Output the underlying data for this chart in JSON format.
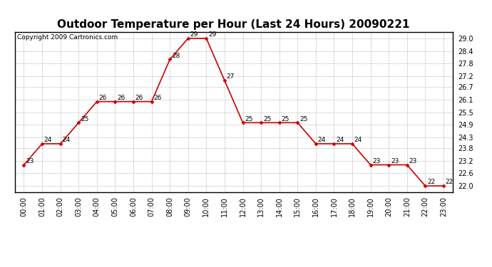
{
  "title": "Outdoor Temperature per Hour (Last 24 Hours) 20090221",
  "copyright": "Copyright 2009 Cartronics.com",
  "hours": [
    "00:00",
    "01:00",
    "02:00",
    "03:00",
    "04:00",
    "05:00",
    "06:00",
    "07:00",
    "08:00",
    "09:00",
    "10:00",
    "11:00",
    "12:00",
    "13:00",
    "14:00",
    "15:00",
    "16:00",
    "17:00",
    "18:00",
    "19:00",
    "20:00",
    "21:00",
    "22:00",
    "23:00"
  ],
  "values": [
    23,
    24,
    24,
    25,
    26,
    26,
    26,
    26,
    28,
    29,
    29,
    27,
    25,
    25,
    25,
    25,
    24,
    24,
    24,
    23,
    23,
    23,
    22,
    22
  ],
  "ylim_min": 21.7,
  "ylim_max": 29.3,
  "yticks": [
    22.0,
    22.6,
    23.2,
    23.8,
    24.3,
    24.9,
    25.5,
    26.1,
    26.7,
    27.2,
    27.8,
    28.4,
    29.0
  ],
  "line_color": "#cc0000",
  "marker_color": "#cc0000",
  "bg_color": "#ffffff",
  "grid_color": "#bbbbbb",
  "title_fontsize": 11,
  "label_fontsize": 6.5,
  "tick_fontsize": 7,
  "copyright_fontsize": 6.5
}
